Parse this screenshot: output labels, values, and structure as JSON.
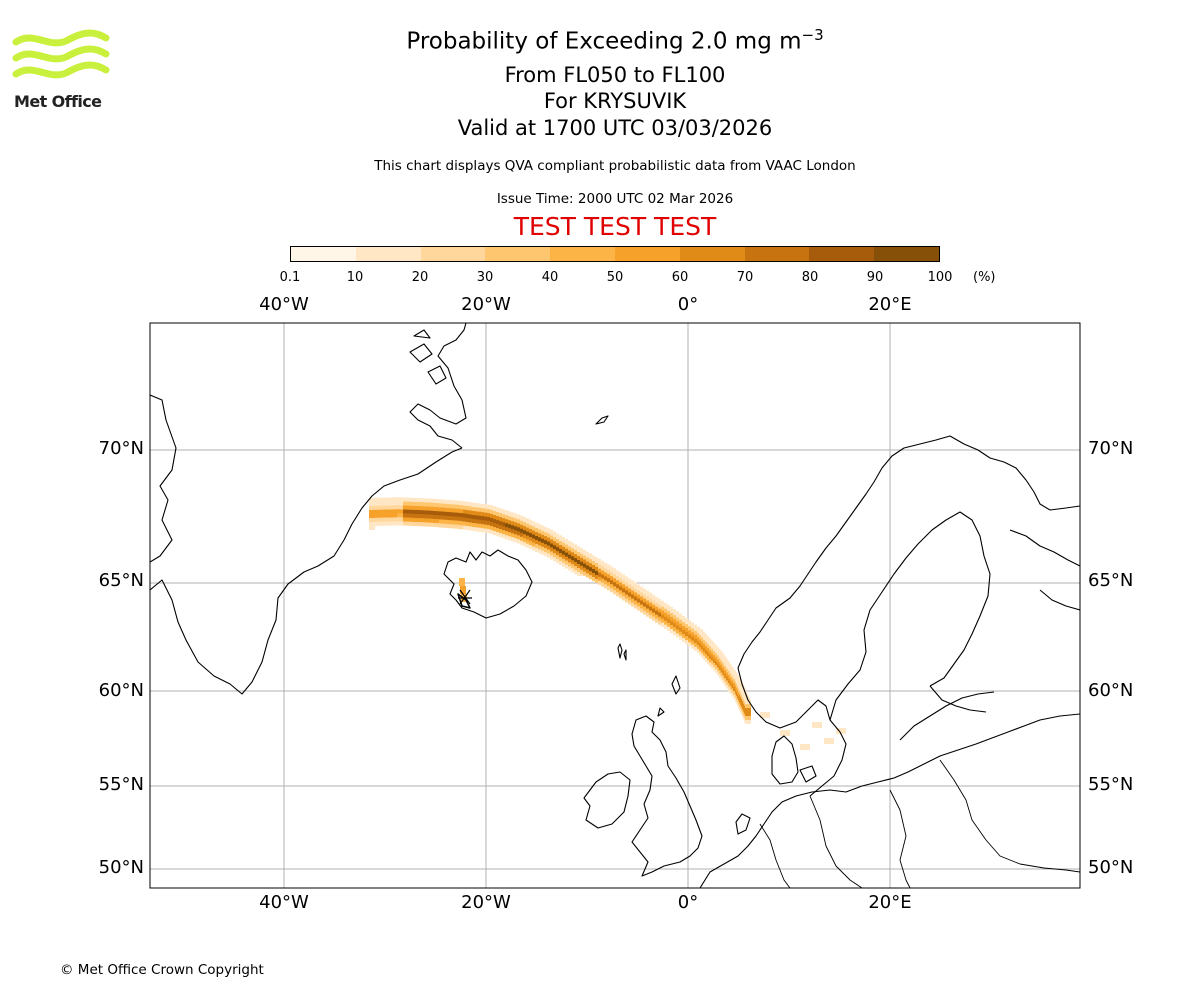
{
  "logo": {
    "text": "Met Office",
    "color": "#c8f03c"
  },
  "header": {
    "title": "Probability of Exceeding 2.0 mg m",
    "title_sup": "−3",
    "subtitle1": "From FL050 to FL100",
    "subtitle2": "For KRYSUVIK",
    "subtitle3": "Valid at 1700 UTC 03/03/2026",
    "description": "This chart displays QVA compliant probabilistic data from VAAC London",
    "issue_time": "Issue Time: 2000 UTC 02 Mar 2026",
    "test_banner": "TEST TEST TEST",
    "test_color": "#e00000"
  },
  "colorbar": {
    "ticks": [
      "0.1",
      "10",
      "20",
      "30",
      "40",
      "50",
      "60",
      "70",
      "80",
      "90",
      "100"
    ],
    "unit": "(%)",
    "colors": [
      "#fff6e8",
      "#ffe6c4",
      "#ffd69c",
      "#ffc670",
      "#fdb446",
      "#f6a12a",
      "#e08a17",
      "#c77410",
      "#a65c0b",
      "#875008",
      "#5e3605"
    ]
  },
  "map": {
    "lon_labels": [
      "40°W",
      "20°W",
      "0°",
      "20°E"
    ],
    "lat_labels": [
      "70°N",
      "65°N",
      "60°N",
      "55°N",
      "50°N"
    ],
    "source_location": "KRYSUVIK"
  },
  "footer": {
    "copyright": "© Met Office Crown Copyright"
  }
}
